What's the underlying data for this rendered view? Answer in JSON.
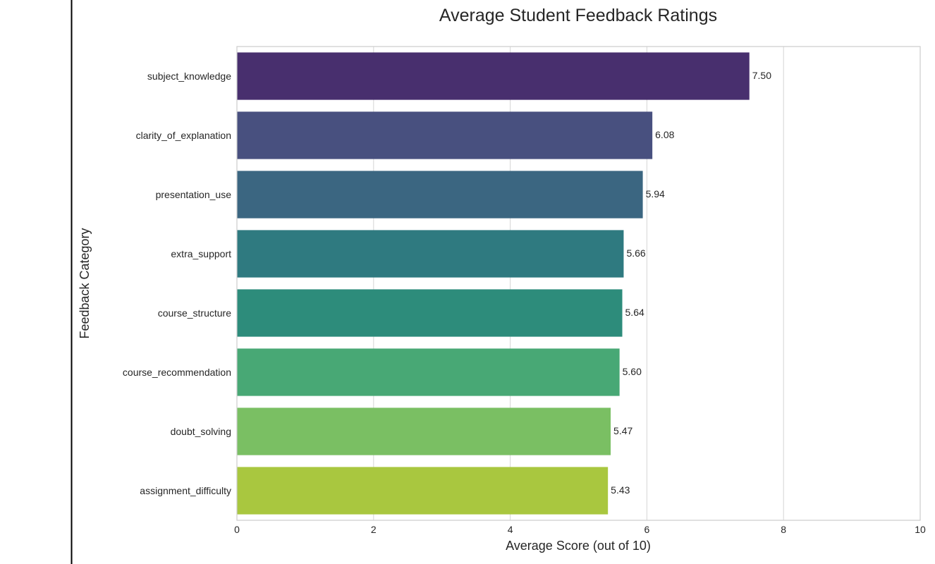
{
  "chart_data": {
    "type": "bar",
    "orientation": "horizontal",
    "title": "Average Student Feedback Ratings",
    "xlabel": "Average Score (out of 10)",
    "ylabel": "Feedback Category",
    "xlim": [
      0,
      10
    ],
    "xticks": [
      "0",
      "2",
      "4",
      "6",
      "8",
      "10"
    ],
    "grid": true,
    "categories": [
      "subject_knowledge",
      "clarity_of_explanation",
      "presentation_use",
      "extra_support",
      "course_structure",
      "course_recommendation",
      "doubt_solving",
      "assignment_difficulty"
    ],
    "values": [
      7.5,
      6.08,
      5.94,
      5.66,
      5.64,
      5.6,
      5.47,
      5.43
    ],
    "value_labels": [
      "7.50",
      "6.08",
      "5.94",
      "5.66",
      "5.64",
      "5.60",
      "5.47",
      "5.43"
    ],
    "colors": [
      "#482f6e",
      "#48507f",
      "#3b6681",
      "#2f7a80",
      "#2d8c7b",
      "#48a875",
      "#7abf63",
      "#a9c73f"
    ]
  }
}
